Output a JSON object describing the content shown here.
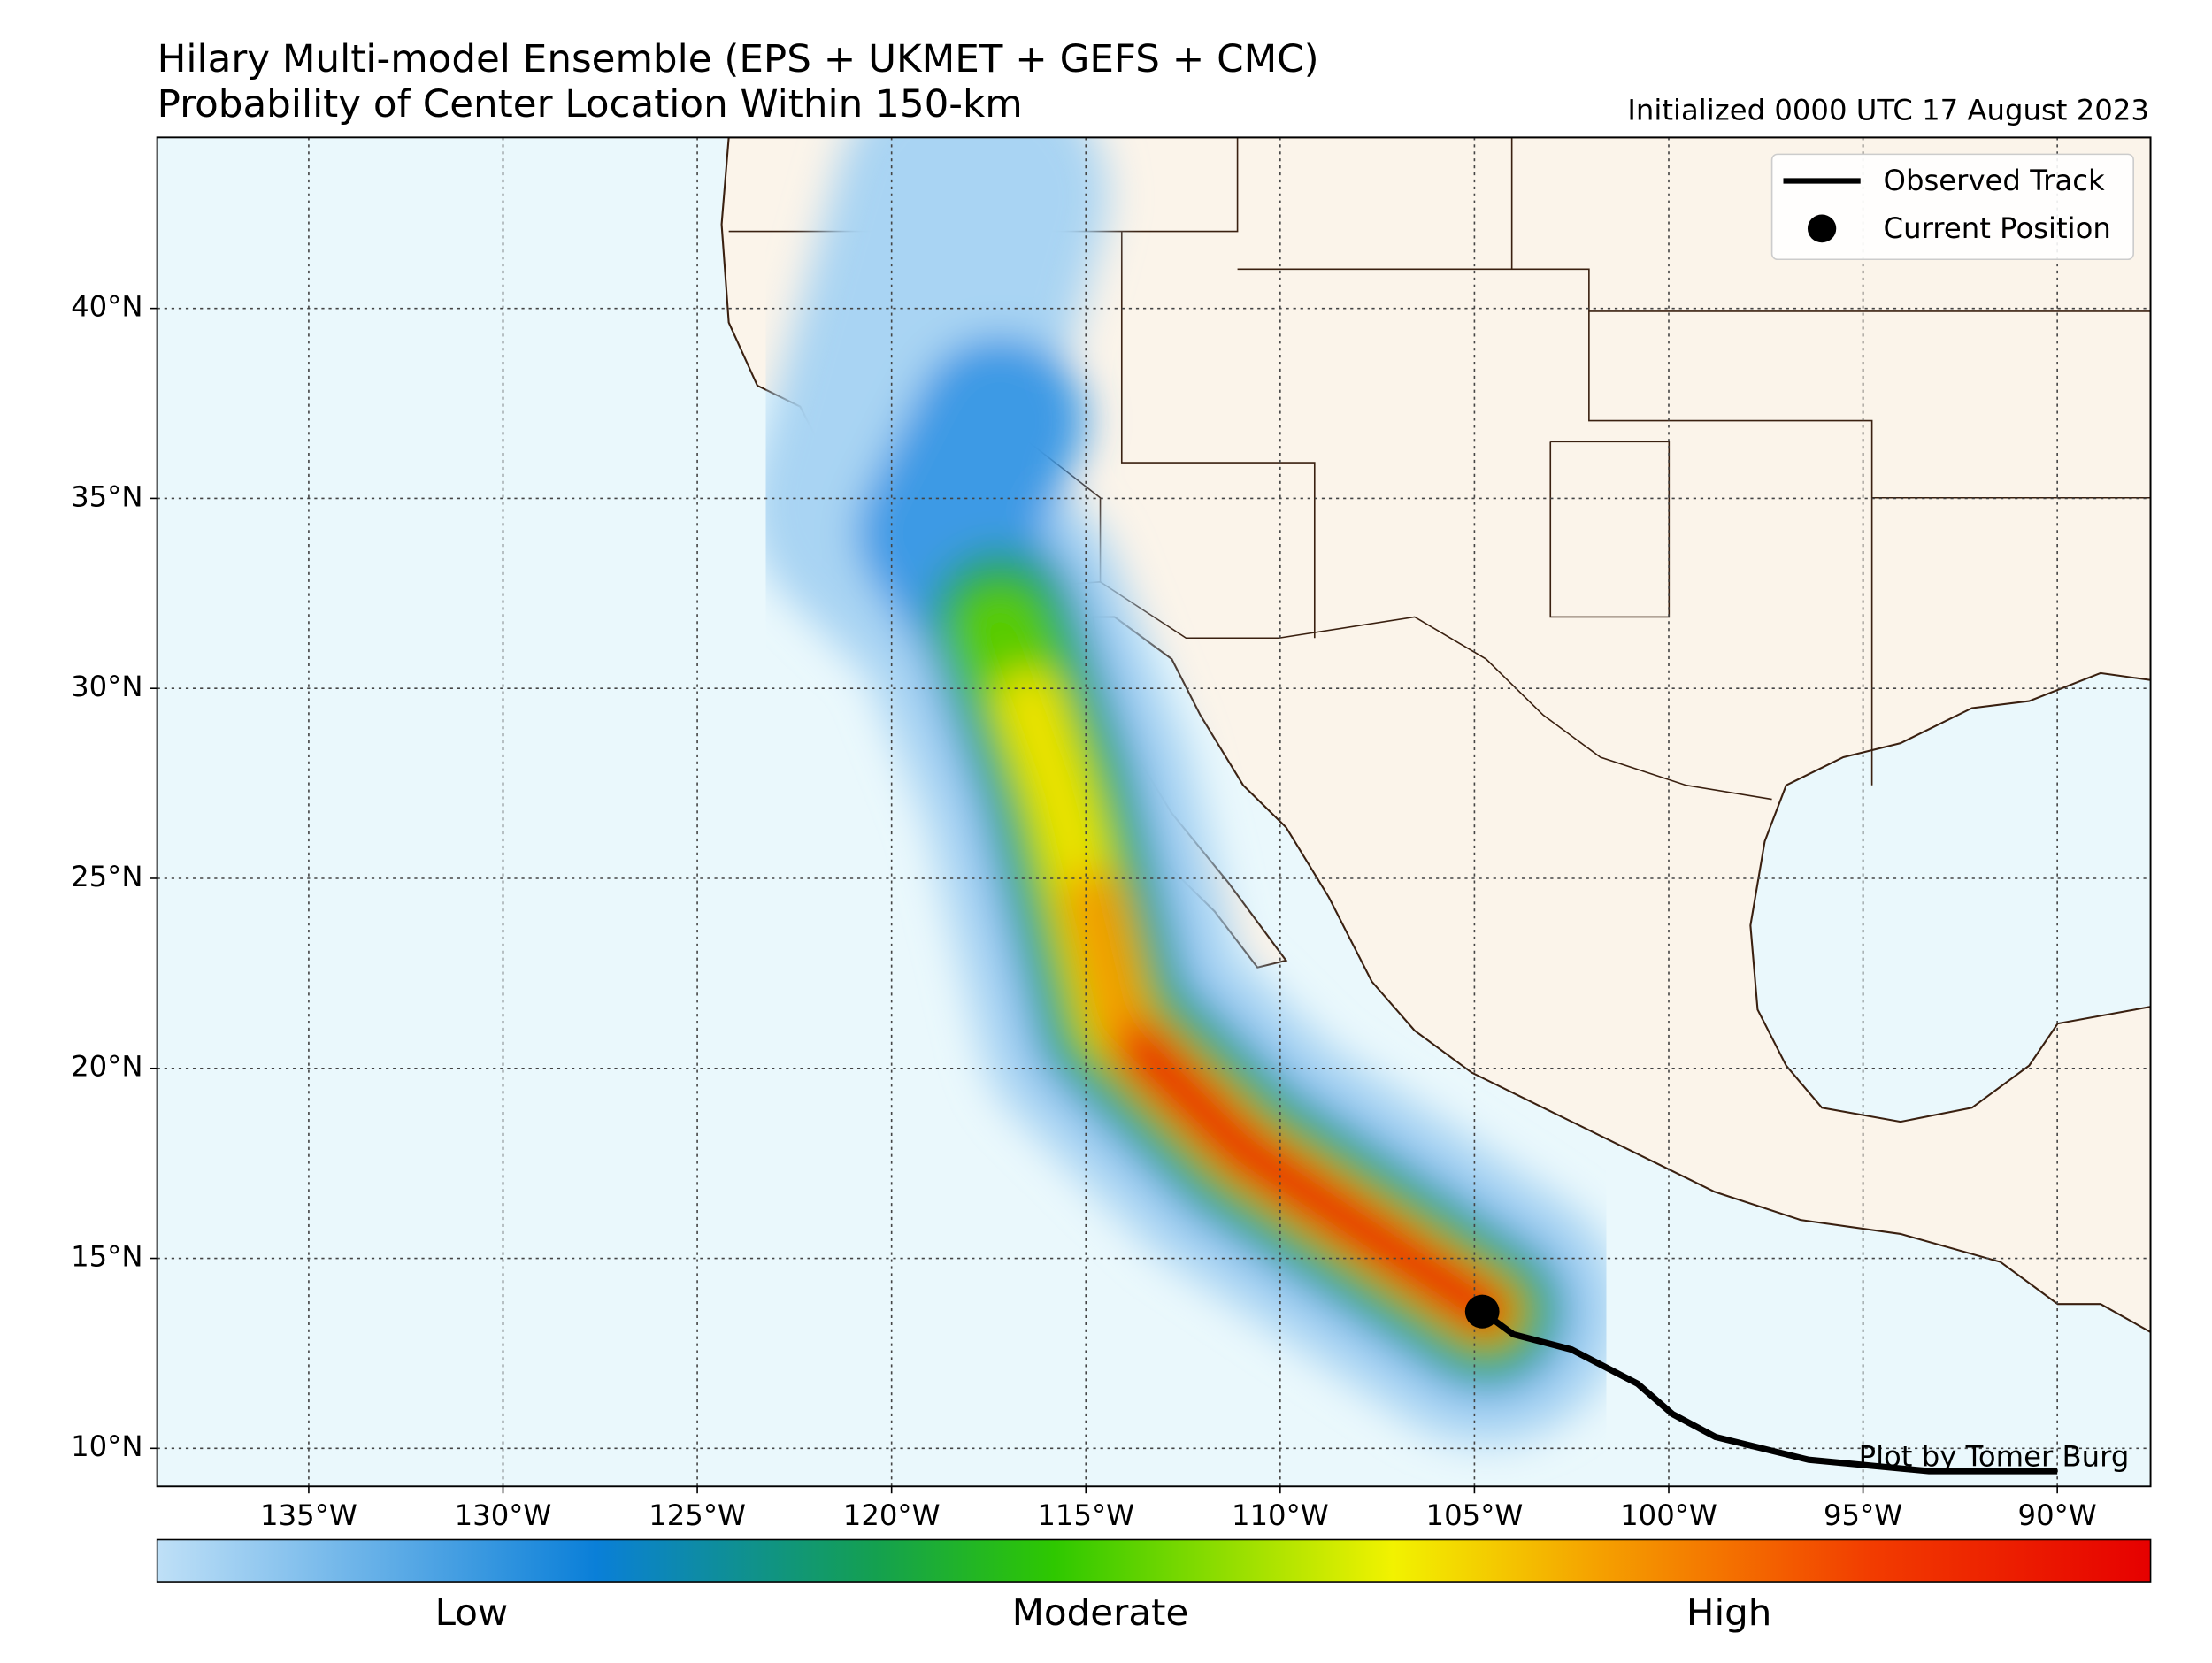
{
  "chart_data": {
    "type": "map",
    "title": "Hilary Multi-model Ensemble (EPS + UKMET + GEFS + CMC)",
    "subtitle": "Probability of Center Location Within 150-km",
    "initialized": "Initialized 0000 UTC 17 August 2023",
    "credit": "Plot by Tomer Burg",
    "xlim": [
      -138.9,
      -87.6
    ],
    "ylim": [
      9.0,
      44.5
    ],
    "grid": true,
    "xticks": [
      {
        "value": -135,
        "label": "135°W"
      },
      {
        "value": -130,
        "label": "130°W"
      },
      {
        "value": -125,
        "label": "125°W"
      },
      {
        "value": -120,
        "label": "120°W"
      },
      {
        "value": -115,
        "label": "115°W"
      },
      {
        "value": -110,
        "label": "110°W"
      },
      {
        "value": -105,
        "label": "105°W"
      },
      {
        "value": -100,
        "label": "100°W"
      },
      {
        "value": -95,
        "label": "95°W"
      },
      {
        "value": -90,
        "label": "90°W"
      }
    ],
    "yticks": [
      {
        "value": 10,
        "label": "10°N"
      },
      {
        "value": 15,
        "label": "15°N"
      },
      {
        "value": 20,
        "label": "20°N"
      },
      {
        "value": 25,
        "label": "25°N"
      },
      {
        "value": 30,
        "label": "30°N"
      },
      {
        "value": 35,
        "label": "35°N"
      },
      {
        "value": 40,
        "label": "40°N"
      }
    ],
    "observed_track": {
      "name": "Observed Track",
      "color": "#000000",
      "lon": [
        -104.8,
        -104.0,
        -102.5,
        -100.8,
        -99.9,
        -98.8,
        -96.4,
        -93.3,
        -90.0
      ],
      "lat": [
        13.6,
        13.0,
        12.6,
        11.7,
        10.9,
        10.3,
        9.7,
        9.4,
        9.4
      ]
    },
    "current_position": {
      "name": "Current Position",
      "color": "#000000",
      "lon": -104.8,
      "lat": 13.6
    },
    "colorbar": {
      "labels": [
        "Low",
        "Moderate",
        "High"
      ]
    }
  }
}
